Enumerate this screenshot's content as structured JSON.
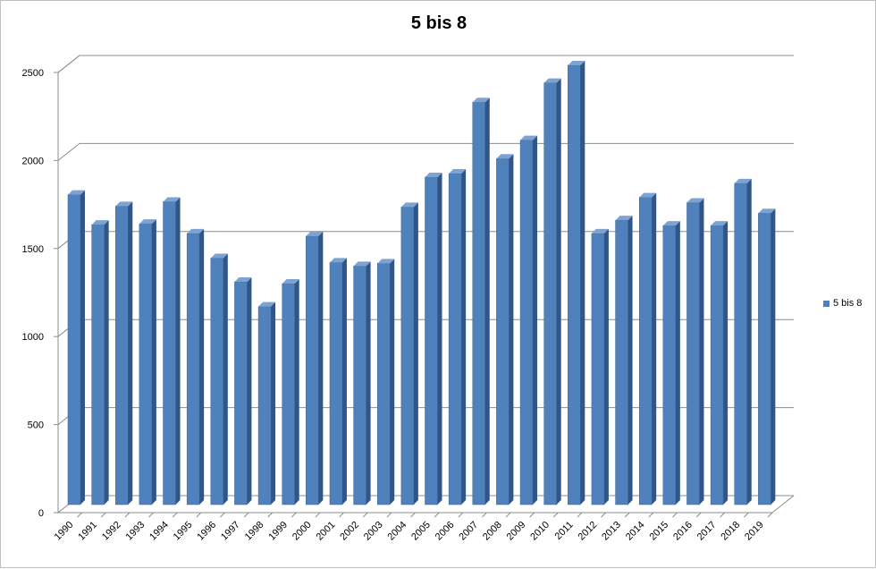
{
  "chart_data": {
    "type": "bar",
    "title": "5 bis 8",
    "xlabel": "",
    "ylabel": "",
    "categories": [
      "1990",
      "1991",
      "1992",
      "1993",
      "1994",
      "1995",
      "1996",
      "1997",
      "1998",
      "1999",
      "2000",
      "2001",
      "2002",
      "2003",
      "2004",
      "2005",
      "2006",
      "2007",
      "2008",
      "2009",
      "2010",
      "2011",
      "2012",
      "2013",
      "2014",
      "2015",
      "2016",
      "2017",
      "2018",
      "2019"
    ],
    "series": [
      {
        "name": "5 bis 8",
        "color": "#4f81bd",
        "values": [
          1760,
          1590,
          1695,
          1595,
          1720,
          1540,
          1400,
          1265,
          1125,
          1255,
          1525,
          1375,
          1355,
          1370,
          1690,
          1860,
          1880,
          2285,
          1965,
          2070,
          2395,
          2495,
          1540,
          1615,
          1745,
          1585,
          1715,
          1585,
          1825,
          1655
        ]
      }
    ],
    "ylim": [
      0,
      2500
    ],
    "yticks": [
      0,
      500,
      1000,
      1500,
      2000,
      2500
    ],
    "grid": true,
    "legend_position": "right",
    "style": "3d-column"
  }
}
